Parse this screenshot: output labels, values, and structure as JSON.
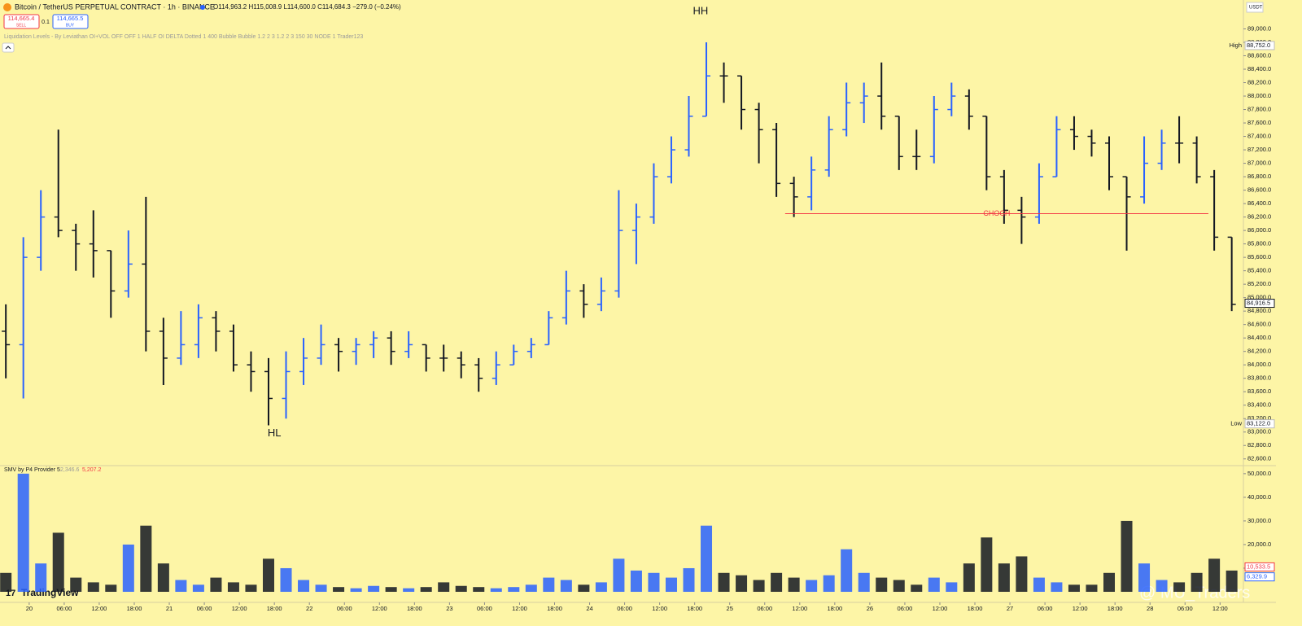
{
  "chart_data": {
    "type": "ohlc",
    "header": {
      "symbol": "Bitcoin / TetherUS PERPETUAL CONTRACT · 1h · BINANCE",
      "ohlc_text": "O114,963.2 H115,008.9 L114,600.0 C114,684.3 −279.0 (−0.24%)",
      "sell_price": "114,665.4",
      "sell": "SELL",
      "spread": "0.1",
      "buy_price": "114,665.5",
      "buy": "BUY",
      "indicator": "Liquidation Levels - By Leviathan OI+VOL OFF OFF 1 HALF OI DELTA Dotted 1 400 Bubble Bubble 1.2 2 3 1.2 2 3 150 30 NODE 1 Trader123",
      "currency": "USDT"
    },
    "up_color": "#2962ff",
    "down_color": "#131722",
    "x": [
      -4,
      -1,
      2,
      5,
      8,
      11,
      14,
      17,
      20,
      23,
      26,
      29,
      32,
      35,
      38,
      41,
      44,
      47,
      50,
      53,
      56,
      59,
      62,
      65,
      68,
      71,
      74,
      77,
      80,
      83,
      86,
      89,
      92,
      95,
      98,
      101,
      104,
      107,
      110,
      113,
      116,
      119,
      122,
      125,
      128,
      131,
      134,
      137,
      140,
      143,
      146,
      149,
      152,
      155,
      158,
      161,
      164,
      167,
      170,
      173,
      176,
      179,
      182,
      185,
      188,
      191,
      194,
      197,
      200,
      203,
      206
    ],
    "open": [
      84500,
      84300,
      85600,
      86200,
      86000,
      85800,
      85700,
      85100,
      85500,
      84500,
      84100,
      84300,
      84700,
      84500,
      84000,
      83900,
      83500,
      83900,
      84100,
      84300,
      84200,
      84300,
      84400,
      84200,
      84300,
      84100,
      84100,
      84000,
      83800,
      84000,
      84200,
      84300,
      84700,
      85100,
      84900,
      85100,
      86000,
      86200,
      86800,
      87200,
      87700,
      88300,
      88300,
      87800,
      87500,
      86700,
      86500,
      86900,
      87500,
      87900,
      88000,
      87700,
      87100,
      87100,
      87800,
      88000,
      87700,
      86800,
      86300,
      86200,
      86800,
      87500,
      87400,
      87300,
      86800,
      86500,
      87000,
      87300,
      87300,
      86800,
      85900
    ],
    "high": [
      84900,
      85900,
      86600,
      87500,
      86100,
      86300,
      85700,
      86000,
      86500,
      84700,
      84800,
      84900,
      84800,
      84600,
      84200,
      84100,
      84200,
      84400,
      84600,
      84400,
      84400,
      84500,
      84500,
      84500,
      84300,
      84300,
      84200,
      84100,
      84200,
      84300,
      84400,
      84800,
      85400,
      85200,
      85300,
      86600,
      86400,
      87000,
      87400,
      88000,
      88800,
      88500,
      88300,
      87900,
      87600,
      86800,
      87100,
      87700,
      88200,
      88200,
      88500,
      87700,
      87500,
      88000,
      88200,
      88100,
      87700,
      86900,
      86500,
      87000,
      87700,
      87700,
      87500,
      87400,
      86800,
      87400,
      87500,
      87700,
      87400,
      86900,
      85900
    ],
    "low": [
      83800,
      83500,
      85400,
      85900,
      85400,
      85300,
      84700,
      85000,
      84200,
      83700,
      84000,
      84100,
      84200,
      83900,
      83600,
      83100,
      83200,
      83700,
      84000,
      83900,
      84000,
      84100,
      84000,
      84100,
      83900,
      83900,
      83800,
      83600,
      83700,
      84000,
      84100,
      84300,
      84600,
      84700,
      84800,
      85000,
      85500,
      86100,
      86700,
      87100,
      87700,
      87900,
      87500,
      87000,
      86500,
      86200,
      86300,
      86800,
      87400,
      87600,
      87500,
      86900,
      86900,
      87000,
      87700,
      87500,
      86600,
      86100,
      85800,
      86100,
      86800,
      87200,
      87100,
      86600,
      85700,
      86400,
      86900,
      87000,
      86700,
      85700,
      84800
    ],
    "close": [
      84300,
      85600,
      86200,
      86000,
      85800,
      85700,
      85100,
      85500,
      84500,
      84100,
      84300,
      84700,
      84500,
      84000,
      83900,
      83500,
      83900,
      84100,
      84300,
      84200,
      84300,
      84400,
      84200,
      84300,
      84100,
      84100,
      84000,
      83800,
      84000,
      84200,
      84300,
      84700,
      85100,
      84900,
      85100,
      86000,
      86200,
      86800,
      87200,
      87700,
      88300,
      88300,
      87800,
      87500,
      86700,
      86500,
      86900,
      87500,
      87900,
      88000,
      87700,
      87100,
      87100,
      87800,
      88000,
      87700,
      86800,
      86300,
      86200,
      86800,
      87500,
      87400,
      87300,
      86800,
      86500,
      87000,
      87300,
      87300,
      86800,
      85900,
      84900
    ],
    "volume": [
      8000,
      50000,
      12000,
      25000,
      6000,
      4000,
      3000,
      20000,
      28000,
      12000,
      5000,
      3000,
      6000,
      4000,
      3000,
      14000,
      10000,
      5000,
      3000,
      2000,
      1500,
      2500,
      2000,
      1500,
      2000,
      4000,
      2500,
      2000,
      1500,
      2000,
      3000,
      6000,
      5000,
      3000,
      4000,
      14000,
      9000,
      8000,
      6000,
      10000,
      28000,
      8000,
      7000,
      5000,
      8000,
      6000,
      5000,
      7000,
      18000,
      8000,
      6000,
      5000,
      3000,
      6000,
      4000,
      12000,
      23000,
      12000,
      15000,
      6000,
      4000,
      3000,
      3000,
      8000,
      30000,
      12000,
      5000,
      4000,
      8000,
      14000,
      9000
    ],
    "xlim": [
      -5,
      208
    ],
    "ylim": [
      82500,
      89430
    ],
    "y2lim": [
      0,
      53400
    ],
    "xticks": [
      {
        "value": 0,
        "label": "20"
      },
      {
        "value": 6,
        "label": "06:00"
      },
      {
        "value": 12,
        "label": "12:00"
      },
      {
        "value": 18,
        "label": "18:00"
      },
      {
        "value": 24,
        "label": "21"
      },
      {
        "value": 30,
        "label": "06:00"
      },
      {
        "value": 36,
        "label": "12:00"
      },
      {
        "value": 42,
        "label": "18:00"
      },
      {
        "value": 48,
        "label": "22"
      },
      {
        "value": 54,
        "label": "06:00"
      },
      {
        "value": 60,
        "label": "12:00"
      },
      {
        "value": 66,
        "label": "18:00"
      },
      {
        "value": 72,
        "label": "23"
      },
      {
        "value": 78,
        "label": "06:00"
      },
      {
        "value": 84,
        "label": "12:00"
      },
      {
        "value": 90,
        "label": "18:00"
      },
      {
        "value": 96,
        "label": "24"
      },
      {
        "value": 102,
        "label": "06:00"
      },
      {
        "value": 108,
        "label": "12:00"
      },
      {
        "value": 114,
        "label": "18:00"
      },
      {
        "value": 120,
        "label": "25"
      },
      {
        "value": 126,
        "label": "06:00"
      },
      {
        "value": 132,
        "label": "12:00"
      },
      {
        "value": 138,
        "label": "18:00"
      },
      {
        "value": 144,
        "label": "26"
      },
      {
        "value": 150,
        "label": "06:00"
      },
      {
        "value": 156,
        "label": "12:00"
      },
      {
        "value": 162,
        "label": "18:00"
      },
      {
        "value": 168,
        "label": "27"
      },
      {
        "value": 174,
        "label": "06:00"
      },
      {
        "value": 180,
        "label": "12:00"
      },
      {
        "value": 186,
        "label": "18:00"
      },
      {
        "value": 192,
        "label": "28"
      },
      {
        "value": 198,
        "label": "06:00"
      },
      {
        "value": 204,
        "label": "12:00"
      }
    ],
    "yticks": [
      {
        "value": 82600,
        "label": "82,600.0"
      },
      {
        "value": 82800,
        "label": "82,800.0"
      },
      {
        "value": 83000,
        "label": "83,000.0"
      },
      {
        "value": 83200,
        "label": "83,200.0"
      },
      {
        "value": 83400,
        "label": "83,400.0"
      },
      {
        "value": 83600,
        "label": "83,600.0"
      },
      {
        "value": 83800,
        "label": "83,800.0"
      },
      {
        "value": 84000,
        "label": "84,000.0"
      },
      {
        "value": 84200,
        "label": "84,200.0"
      },
      {
        "value": 84400,
        "label": "84,400.0"
      },
      {
        "value": 84600,
        "label": "84,600.0"
      },
      {
        "value": 84800,
        "label": "84,800.0"
      },
      {
        "value": 85000,
        "label": "85,000.0"
      },
      {
        "value": 85200,
        "label": "85,200.0"
      },
      {
        "value": 85400,
        "label": "85,400.0"
      },
      {
        "value": 85600,
        "label": "85,600.0"
      },
      {
        "value": 85800,
        "label": "85,800.0"
      },
      {
        "value": 86000,
        "label": "86,000.0"
      },
      {
        "value": 86200,
        "label": "86,200.0"
      },
      {
        "value": 86400,
        "label": "86,400.0"
      },
      {
        "value": 86600,
        "label": "86,600.0"
      },
      {
        "value": 86800,
        "label": "86,800.0"
      },
      {
        "value": 87000,
        "label": "87,000.0"
      },
      {
        "value": 87200,
        "label": "87,200.0"
      },
      {
        "value": 87400,
        "label": "87,400.0"
      },
      {
        "value": 87600,
        "label": "87,600.0"
      },
      {
        "value": 87800,
        "label": "87,800.0"
      },
      {
        "value": 88000,
        "label": "88,000.0"
      },
      {
        "value": 88200,
        "label": "88,200.0"
      },
      {
        "value": 88400,
        "label": "88,400.0"
      },
      {
        "value": 88600,
        "label": "88,600.0"
      },
      {
        "value": 88800,
        "label": "88,800.0"
      },
      {
        "value": 89000,
        "label": "89,000.0"
      }
    ],
    "y2ticks": [
      {
        "value": 10000,
        "label": "10,000.0"
      },
      {
        "value": 20000,
        "label": "20,000.0"
      },
      {
        "value": 30000,
        "label": "30,000.0"
      },
      {
        "value": 40000,
        "label": "40,000.0"
      },
      {
        "value": 50000,
        "label": "50,000.0"
      }
    ],
    "price_markers": [
      {
        "name": "High",
        "value": 88752,
        "label": "88,752.0"
      },
      {
        "name": "Low",
        "value": 83122,
        "label": "83,122.0"
      }
    ],
    "last_price": {
      "value": 84916.5,
      "label": "84,916.5"
    },
    "annotations": [
      {
        "text": "HH",
        "x": 115,
        "y": 89260
      },
      {
        "text": "HL",
        "x": 42,
        "y": 82976
      }
    ],
    "choch": {
      "text": "CHOCH",
      "value": 86250,
      "x": [
        129.5,
        202
      ],
      "color": "#f23645"
    },
    "volume_indicator": {
      "title": "SMV by P4 Provider 5",
      "v1": "2,346.6",
      "v2": "5,207.2"
    },
    "volume_markers": [
      {
        "value": 10533.5,
        "label": "10,533.5",
        "color": "#f23645"
      },
      {
        "value": 6329.9,
        "label": "6,329.9",
        "color": "#2962ff"
      }
    ],
    "brand": "TradingView",
    "watermark": "@ MU_Traders"
  }
}
